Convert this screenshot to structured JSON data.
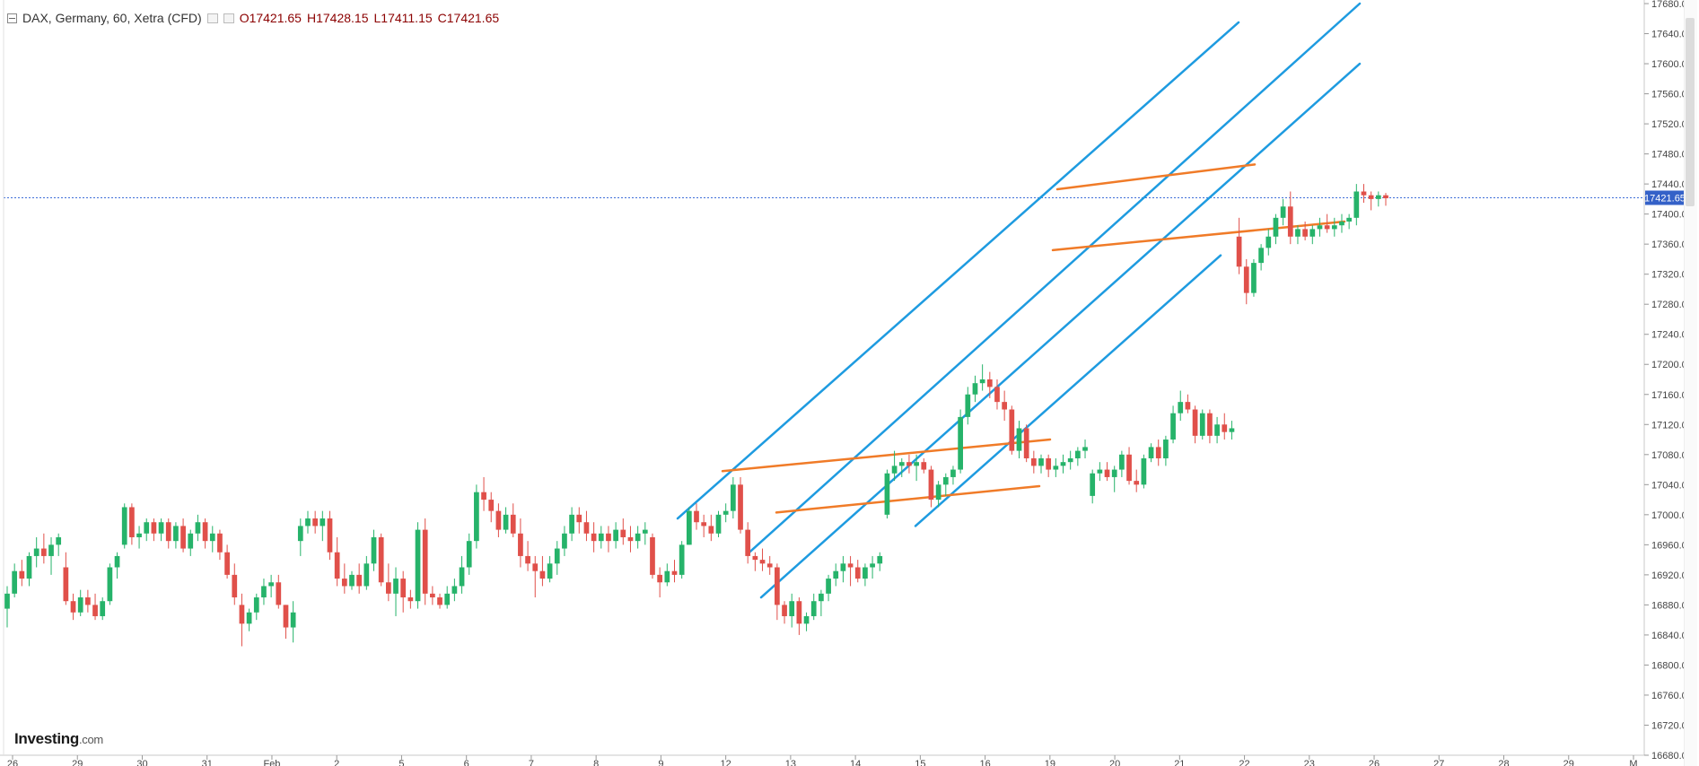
{
  "header": {
    "symbol": "DAX, Germany, 60, Xetra (CFD)",
    "open": "O17421.65",
    "high": "H17428.15",
    "low": "L17411.15",
    "close": "C17421.65"
  },
  "logo": {
    "brand": "Investing",
    "suffix": ".com"
  },
  "price_tag": "17421.65",
  "colors": {
    "up": "#26b36a",
    "down": "#e0504a",
    "channel": "#1e9be0",
    "wedge": "#f07b28",
    "price_line": "#3f6fd8",
    "price_tag_bg": "#3461c8"
  },
  "chart_data": {
    "type": "candlestick",
    "title": "DAX, Germany, 60, Xetra (CFD)",
    "ylim": [
      16680,
      17680
    ],
    "y_ticks": [
      "17680.00",
      "17640.00",
      "17600.00",
      "17560.00",
      "17520.00",
      "17480.00",
      "17440.00",
      "17400.00",
      "17360.00",
      "17320.00",
      "17280.00",
      "17240.00",
      "17200.00",
      "17160.00",
      "17120.00",
      "17080.00",
      "17040.00",
      "17000.00",
      "16960.00",
      "16920.00",
      "16880.00",
      "16840.00",
      "16800.00",
      "16760.00",
      "16720.00",
      "16680.00"
    ],
    "x_ticks": [
      "26",
      "29",
      "30",
      "31",
      "Feb",
      "2",
      "5",
      "6",
      "7",
      "8",
      "9",
      "12",
      "13",
      "14",
      "15",
      "16",
      "19",
      "20",
      "21",
      "22",
      "23",
      "26",
      "27",
      "28",
      "29",
      "M"
    ],
    "last_price": 17421.65,
    "candles": [
      [
        16875,
        16905,
        16850,
        16895
      ],
      [
        16895,
        16935,
        16890,
        16925
      ],
      [
        16925,
        16940,
        16905,
        16915
      ],
      [
        16915,
        16950,
        16905,
        16945
      ],
      [
        16945,
        16970,
        16930,
        16955
      ],
      [
        16955,
        16975,
        16935,
        16945
      ],
      [
        16945,
        16970,
        16920,
        16960
      ],
      [
        16960,
        16975,
        16945,
        16970
      ],
      [
        16930,
        16950,
        16880,
        16885
      ],
      [
        16885,
        16895,
        16860,
        16870
      ],
      [
        16870,
        16900,
        16865,
        16890
      ],
      [
        16890,
        16900,
        16870,
        16880
      ],
      [
        16880,
        16895,
        16860,
        16865
      ],
      [
        16865,
        16890,
        16860,
        16885
      ],
      [
        16885,
        16935,
        16880,
        16930
      ],
      [
        16930,
        16950,
        16915,
        16945
      ],
      [
        16960,
        17015,
        16955,
        17010
      ],
      [
        17010,
        17015,
        16960,
        16970
      ],
      [
        16970,
        16985,
        16955,
        16975
      ],
      [
        16975,
        16995,
        16965,
        16990
      ],
      [
        16990,
        16995,
        16965,
        16975
      ],
      [
        16975,
        16995,
        16965,
        16990
      ],
      [
        16990,
        16995,
        16955,
        16965
      ],
      [
        16965,
        16990,
        16955,
        16985
      ],
      [
        16985,
        16995,
        16950,
        16955
      ],
      [
        16955,
        16980,
        16945,
        16975
      ],
      [
        16975,
        17000,
        16965,
        16990
      ],
      [
        16990,
        16995,
        16955,
        16965
      ],
      [
        16965,
        16985,
        16950,
        16975
      ],
      [
        16975,
        16980,
        16940,
        16950
      ],
      [
        16950,
        16960,
        16915,
        16920
      ],
      [
        16920,
        16935,
        16880,
        16890
      ],
      [
        16880,
        16895,
        16825,
        16855
      ],
      [
        16855,
        16875,
        16845,
        16870
      ],
      [
        16870,
        16895,
        16860,
        16890
      ],
      [
        16890,
        16915,
        16880,
        16905
      ],
      [
        16905,
        16920,
        16890,
        16910
      ],
      [
        16910,
        16920,
        16875,
        16880
      ],
      [
        16880,
        16880,
        16835,
        16850
      ],
      [
        16850,
        16885,
        16830,
        16870
      ],
      [
        16965,
        16995,
        16945,
        16985
      ],
      [
        16985,
        17005,
        16975,
        16995
      ],
      [
        16995,
        17005,
        16975,
        16985
      ],
      [
        16985,
        17005,
        16965,
        16995
      ],
      [
        16995,
        17005,
        16940,
        16950
      ],
      [
        16950,
        16970,
        16905,
        16915
      ],
      [
        16915,
        16935,
        16895,
        16905
      ],
      [
        16905,
        16925,
        16900,
        16920
      ],
      [
        16920,
        16935,
        16895,
        16905
      ],
      [
        16905,
        16945,
        16900,
        16935
      ],
      [
        16935,
        16980,
        16925,
        16970
      ],
      [
        16970,
        16975,
        16905,
        16910
      ],
      [
        16910,
        16935,
        16885,
        16895
      ],
      [
        16895,
        16930,
        16865,
        16915
      ],
      [
        16915,
        16925,
        16870,
        16890
      ],
      [
        16890,
        16900,
        16875,
        16885
      ],
      [
        16885,
        16990,
        16875,
        16980
      ],
      [
        16980,
        16995,
        16880,
        16895
      ],
      [
        16895,
        16905,
        16880,
        16890
      ],
      [
        16890,
        16895,
        16875,
        16880
      ],
      [
        16880,
        16905,
        16875,
        16895
      ],
      [
        16895,
        16915,
        16885,
        16905
      ],
      [
        16905,
        16945,
        16895,
        16930
      ],
      [
        16930,
        16975,
        16920,
        16965
      ],
      [
        16965,
        17040,
        16955,
        17030
      ],
      [
        17030,
        17050,
        17005,
        17020
      ],
      [
        17020,
        17030,
        16990,
        17005
      ],
      [
        17005,
        17015,
        16970,
        16980
      ],
      [
        16980,
        17010,
        16975,
        17000
      ],
      [
        17000,
        17015,
        16970,
        16975
      ],
      [
        16975,
        16995,
        16930,
        16945
      ],
      [
        16945,
        16965,
        16925,
        16935
      ],
      [
        16935,
        16945,
        16890,
        16925
      ],
      [
        16925,
        16945,
        16905,
        16915
      ],
      [
        16915,
        16945,
        16910,
        16935
      ],
      [
        16935,
        16965,
        16920,
        16955
      ],
      [
        16955,
        16985,
        16945,
        16975
      ],
      [
        16975,
        17010,
        16965,
        17000
      ],
      [
        17000,
        17010,
        16975,
        16990
      ],
      [
        16990,
        17005,
        16965,
        16975
      ],
      [
        16975,
        16990,
        16950,
        16965
      ],
      [
        16965,
        16985,
        16955,
        16975
      ],
      [
        16975,
        16985,
        16950,
        16965
      ],
      [
        16965,
        16990,
        16955,
        16980
      ],
      [
        16980,
        16995,
        16960,
        16970
      ],
      [
        16970,
        16985,
        16950,
        16965
      ],
      [
        16965,
        16985,
        16955,
        16975
      ],
      [
        16975,
        16990,
        16960,
        16980
      ],
      [
        16970,
        16975,
        16915,
        16920
      ],
      [
        16920,
        16930,
        16890,
        16910
      ],
      [
        16910,
        16935,
        16905,
        16925
      ],
      [
        16925,
        16940,
        16910,
        16920
      ],
      [
        16920,
        16965,
        16915,
        16960
      ],
      [
        16960,
        17010,
        16960,
        17005
      ],
      [
        17005,
        17015,
        16980,
        16990
      ],
      [
        16990,
        17000,
        16970,
        16985
      ],
      [
        16985,
        17000,
        16965,
        16975
      ],
      [
        16975,
        17005,
        16970,
        17000
      ],
      [
        17000,
        17015,
        16990,
        17005
      ],
      [
        17005,
        17050,
        16995,
        17040
      ],
      [
        17040,
        17050,
        16975,
        16980
      ],
      [
        16980,
        16990,
        16935,
        16945
      ],
      [
        16945,
        16950,
        16925,
        16940
      ],
      [
        16940,
        16955,
        16925,
        16935
      ],
      [
        16935,
        16945,
        16920,
        16930
      ],
      [
        16930,
        16935,
        16860,
        16880
      ],
      [
        16880,
        16885,
        16855,
        16865
      ],
      [
        16865,
        16895,
        16850,
        16885
      ],
      [
        16885,
        16890,
        16840,
        16855
      ],
      [
        16855,
        16870,
        16845,
        16865
      ],
      [
        16865,
        16895,
        16860,
        16885
      ],
      [
        16885,
        16900,
        16865,
        16895
      ],
      [
        16895,
        16920,
        16885,
        16915
      ],
      [
        16915,
        16935,
        16905,
        16925
      ],
      [
        16925,
        16945,
        16910,
        16935
      ],
      [
        16935,
        16945,
        16905,
        16930
      ],
      [
        16930,
        16940,
        16910,
        16915
      ],
      [
        16915,
        16935,
        16905,
        16930
      ],
      [
        16930,
        16945,
        16915,
        16935
      ],
      [
        16935,
        16950,
        16925,
        16945
      ],
      [
        17000,
        17060,
        16995,
        17055
      ],
      [
        17055,
        17085,
        17045,
        17065
      ],
      [
        17065,
        17075,
        17050,
        17070
      ],
      [
        17070,
        17080,
        17055,
        17065
      ],
      [
        17065,
        17080,
        17045,
        17070
      ],
      [
        17070,
        17075,
        17055,
        17060
      ],
      [
        17060,
        17065,
        17010,
        17020
      ],
      [
        17020,
        17045,
        17010,
        17040
      ],
      [
        17040,
        17055,
        17025,
        17050
      ],
      [
        17050,
        17065,
        17040,
        17060
      ],
      [
        17060,
        17140,
        17055,
        17130
      ],
      [
        17130,
        17170,
        17120,
        17160
      ],
      [
        17160,
        17185,
        17150,
        17175
      ],
      [
        17175,
        17200,
        17165,
        17180
      ],
      [
        17180,
        17190,
        17155,
        17170
      ],
      [
        17170,
        17180,
        17140,
        17150
      ],
      [
        17150,
        17165,
        17125,
        17140
      ],
      [
        17140,
        17145,
        17080,
        17085
      ],
      [
        17085,
        17125,
        17075,
        17115
      ],
      [
        17115,
        17120,
        17070,
        17075
      ],
      [
        17075,
        17085,
        17055,
        17065
      ],
      [
        17065,
        17080,
        17055,
        17075
      ],
      [
        17075,
        17080,
        17050,
        17060
      ],
      [
        17060,
        17075,
        17050,
        17065
      ],
      [
        17065,
        17080,
        17055,
        17070
      ],
      [
        17070,
        17085,
        17060,
        17075
      ],
      [
        17075,
        17090,
        17065,
        17085
      ],
      [
        17085,
        17100,
        17075,
        17090
      ],
      [
        17025,
        17060,
        17015,
        17055
      ],
      [
        17055,
        17070,
        17045,
        17060
      ],
      [
        17060,
        17070,
        17045,
        17050
      ],
      [
        17050,
        17065,
        17030,
        17060
      ],
      [
        17060,
        17085,
        17050,
        17080
      ],
      [
        17080,
        17090,
        17040,
        17045
      ],
      [
        17045,
        17060,
        17030,
        17040
      ],
      [
        17040,
        17080,
        17035,
        17075
      ],
      [
        17075,
        17095,
        17070,
        17090
      ],
      [
        17090,
        17100,
        17065,
        17075
      ],
      [
        17075,
        17105,
        17065,
        17100
      ],
      [
        17100,
        17145,
        17095,
        17135
      ],
      [
        17135,
        17165,
        17125,
        17150
      ],
      [
        17150,
        17160,
        17135,
        17140
      ],
      [
        17140,
        17145,
        17095,
        17105
      ],
      [
        17105,
        17140,
        17100,
        17135
      ],
      [
        17135,
        17140,
        17095,
        17105
      ],
      [
        17105,
        17130,
        17095,
        17120
      ],
      [
        17120,
        17135,
        17100,
        17110
      ],
      [
        17110,
        17125,
        17100,
        17115
      ],
      [
        17370,
        17395,
        17320,
        17330
      ],
      [
        17330,
        17340,
        17280,
        17295
      ],
      [
        17295,
        17340,
        17290,
        17335
      ],
      [
        17335,
        17360,
        17325,
        17355
      ],
      [
        17355,
        17380,
        17345,
        17370
      ],
      [
        17370,
        17400,
        17360,
        17395
      ],
      [
        17395,
        17420,
        17385,
        17410
      ],
      [
        17410,
        17430,
        17360,
        17370
      ],
      [
        17370,
        17385,
        17360,
        17380
      ],
      [
        17380,
        17390,
        17365,
        17370
      ],
      [
        17370,
        17385,
        17360,
        17380
      ],
      [
        17380,
        17395,
        17370,
        17385
      ],
      [
        17385,
        17400,
        17375,
        17380
      ],
      [
        17380,
        17395,
        17370,
        17385
      ],
      [
        17385,
        17400,
        17375,
        17390
      ],
      [
        17390,
        17400,
        17380,
        17395
      ],
      [
        17395,
        17440,
        17385,
        17430
      ],
      [
        17430,
        17440,
        17415,
        17425
      ],
      [
        17425,
        17430,
        17405,
        17420
      ],
      [
        17420,
        17430,
        17410,
        17425
      ],
      [
        17425,
        17428,
        17411,
        17421
      ]
    ],
    "channel_lines": [
      {
        "x1": 755,
        "y1": 16995,
        "x2": 1380,
        "y2": 17655
      },
      {
        "x1": 835,
        "y1": 16950,
        "x2": 1515,
        "y2": 17680
      },
      {
        "x1": 848,
        "y1": 16890,
        "x2": 1515,
        "y2": 17600
      },
      {
        "x1": 1020,
        "y1": 16985,
        "x2": 1360,
        "y2": 17345
      }
    ],
    "wedge_lines": [
      {
        "x1": 805,
        "y1": 17058,
        "x2": 1170,
        "y2": 17100
      },
      {
        "x1": 865,
        "y1": 17003,
        "x2": 1158,
        "y2": 17038
      },
      {
        "x1": 1178,
        "y1": 17433,
        "x2": 1398,
        "y2": 17466
      },
      {
        "x1": 1173,
        "y1": 17352,
        "x2": 1498,
        "y2": 17390
      }
    ]
  }
}
